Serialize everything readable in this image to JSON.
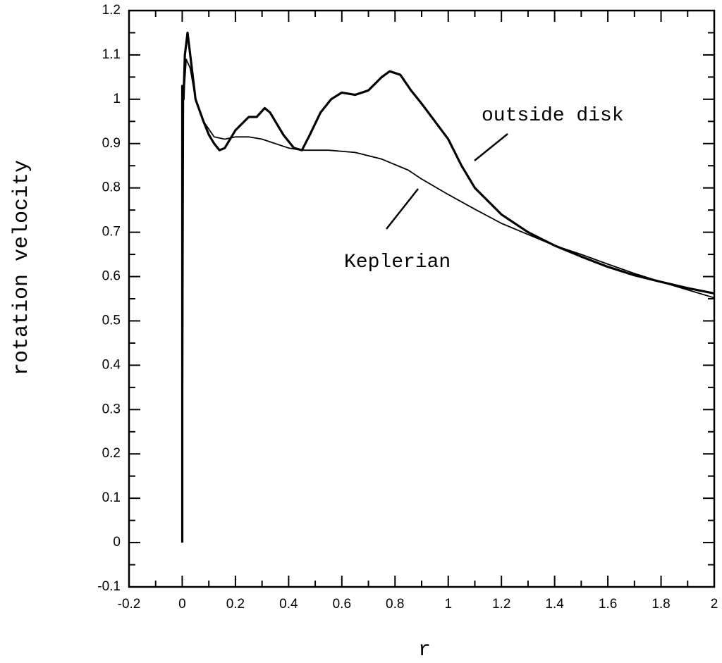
{
  "chart_data": {
    "type": "line",
    "xlabel": "r",
    "ylabel": "rotation velocity",
    "xlim": [
      -0.2,
      2
    ],
    "ylim": [
      -0.1,
      1.2
    ],
    "xticks": [
      -0.2,
      0,
      0.2,
      0.4,
      0.6,
      0.8,
      1,
      1.2,
      1.4,
      1.6,
      1.8,
      2
    ],
    "yticks": [
      -0.1,
      0,
      0.1,
      0.2,
      0.3,
      0.4,
      0.5,
      0.6,
      0.7,
      0.8,
      0.9,
      1,
      1.1,
      1.2
    ],
    "minor_xticks": [
      -0.1,
      0.1,
      0.3,
      0.5,
      0.7,
      0.9,
      1.1,
      1.3,
      1.5,
      1.7,
      1.9
    ],
    "minor_yticks": [
      -0.05,
      0.05,
      0.15,
      0.25,
      0.35,
      0.45,
      0.55,
      0.65,
      0.75,
      0.85,
      0.95,
      1.05,
      1.15
    ],
    "series": [
      {
        "name": "outside disk",
        "color": "#000000",
        "width": 3.2,
        "x": [
          0,
          0,
          0.005,
          0.01,
          0.02,
          0.03,
          0.05,
          0.08,
          0.1,
          0.12,
          0.14,
          0.16,
          0.2,
          0.25,
          0.28,
          0.31,
          0.33,
          0.38,
          0.42,
          0.45,
          0.48,
          0.52,
          0.56,
          0.6,
          0.65,
          0.7,
          0.75,
          0.78,
          0.82,
          0.86,
          0.9,
          0.95,
          1.0,
          1.05,
          1.1,
          1.2,
          1.3,
          1.4,
          1.5,
          1.6,
          1.7,
          1.8,
          1.9,
          2.0
        ],
        "values": [
          0,
          1.03,
          1.0,
          1.1,
          1.15,
          1.1,
          1.0,
          0.95,
          0.92,
          0.9,
          0.885,
          0.89,
          0.93,
          0.96,
          0.96,
          0.98,
          0.97,
          0.92,
          0.89,
          0.885,
          0.92,
          0.97,
          1.0,
          1.015,
          1.01,
          1.02,
          1.05,
          1.063,
          1.055,
          1.02,
          0.99,
          0.95,
          0.91,
          0.85,
          0.8,
          0.74,
          0.7,
          0.67,
          0.645,
          0.622,
          0.603,
          0.588,
          0.574,
          0.562
        ]
      },
      {
        "name": "Keplerian",
        "color": "#000000",
        "width": 1.8,
        "x": [
          0,
          0.005,
          0.015,
          0.03,
          0.05,
          0.08,
          0.12,
          0.16,
          0.2,
          0.25,
          0.3,
          0.35,
          0.4,
          0.45,
          0.55,
          0.65,
          0.75,
          0.85,
          0.9,
          1.0,
          1.1,
          1.2,
          1.3,
          1.4,
          1.5,
          1.6,
          1.7,
          1.8,
          1.9,
          2.0
        ],
        "values": [
          0,
          1.0,
          1.09,
          1.07,
          1.0,
          0.95,
          0.915,
          0.91,
          0.915,
          0.915,
          0.91,
          0.9,
          0.89,
          0.885,
          0.885,
          0.88,
          0.865,
          0.84,
          0.82,
          0.785,
          0.752,
          0.72,
          0.695,
          0.67,
          0.65,
          0.628,
          0.607,
          0.588,
          0.57,
          0.552
        ]
      }
    ]
  }
}
